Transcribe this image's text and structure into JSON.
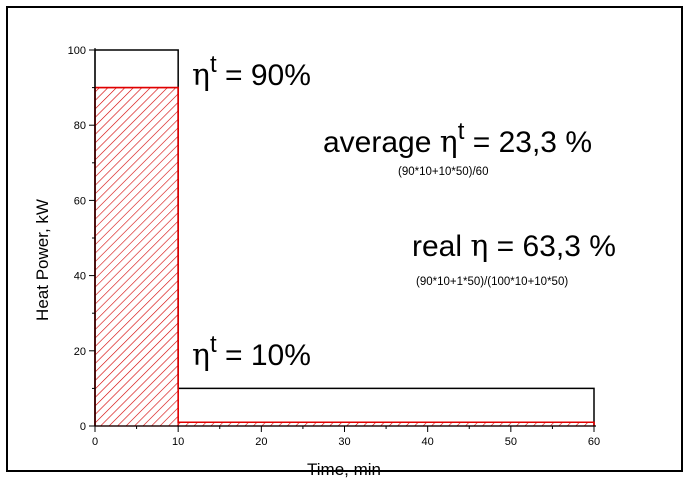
{
  "chart_data": {
    "type": "area",
    "title": "",
    "xlabel": "Time, min",
    "ylabel": "Heat Power, kW",
    "xlim": [
      0,
      60
    ],
    "ylim": [
      0,
      100
    ],
    "x_ticks": [
      "0",
      "10",
      "20",
      "30",
      "40",
      "50",
      "60"
    ],
    "y_ticks": [
      "0",
      "20",
      "40",
      "60",
      "80",
      "100"
    ],
    "x_tick_values": [
      0,
      10,
      20,
      30,
      40,
      50,
      60
    ],
    "y_tick_values": [
      0,
      20,
      40,
      60,
      80,
      100
    ],
    "grid": false,
    "series": [
      {
        "role": "total",
        "color": "#000000",
        "steps": [
          {
            "x0": 0,
            "x1": 10,
            "y": 100
          },
          {
            "x0": 10,
            "x1": 60,
            "y": 10
          }
        ]
      },
      {
        "role": "useful-hatched",
        "color": "#e00000",
        "steps": [
          {
            "x0": 0,
            "x1": 10,
            "y": 90
          },
          {
            "x0": 10,
            "x1": 60,
            "y": 1
          }
        ]
      }
    ],
    "annotations": {
      "eta_90": {
        "sym": "η",
        "sup": "t",
        "rest": " = 90%"
      },
      "eta_10": {
        "sym": "η",
        "sup": "t",
        "rest": " = 10%"
      },
      "avg": {
        "pre": "average ",
        "sym": "η",
        "sup": "t",
        "rest": " = 23,3 %",
        "formula": "(90*10+10*50)/60"
      },
      "real": {
        "pre": "real ",
        "sym": "η",
        "rest": " = 63,3 %",
        "formula": "(90*10+1*50)/(100*10+10*50)"
      }
    }
  }
}
